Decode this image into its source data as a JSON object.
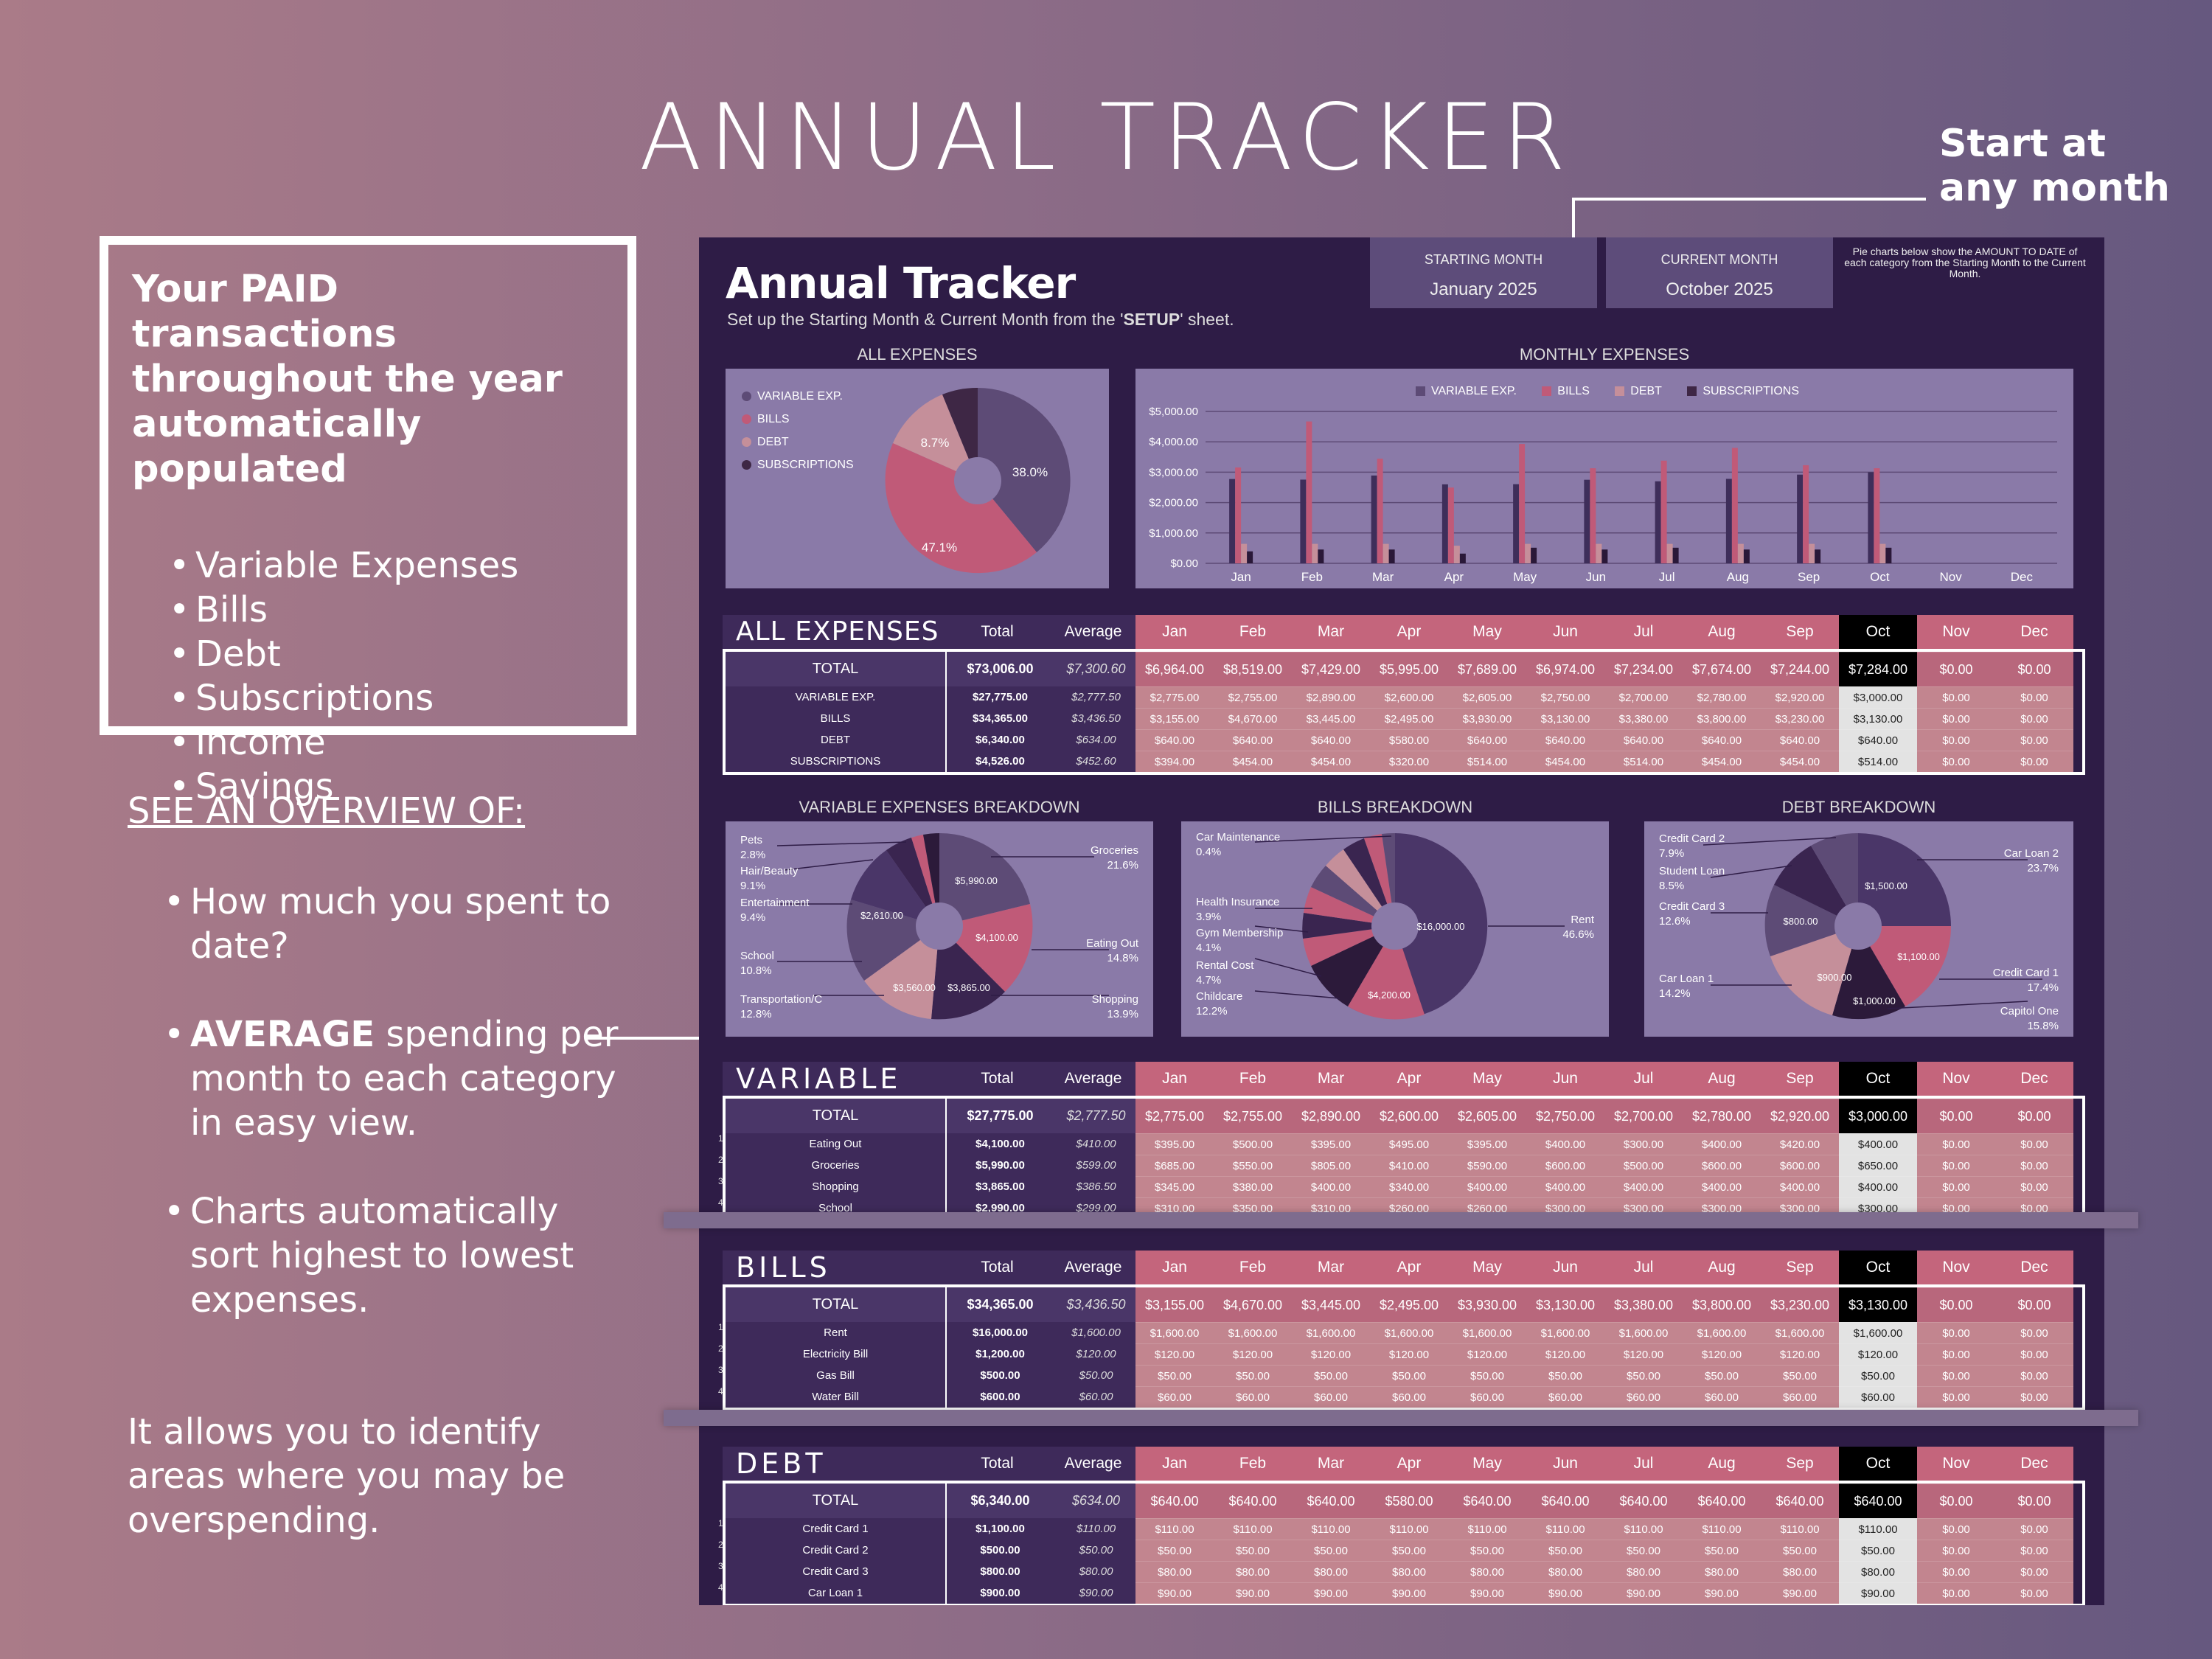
{
  "hero_title": "ANNUAL TRACKER",
  "callout": {
    "line1": "Start at",
    "line2": "any month"
  },
  "intro_box": {
    "heading": "Your PAID transactions throughout the year automatically populated",
    "items": [
      "Variable Expenses",
      "Bills",
      "Debt",
      "Subscriptions",
      "Income",
      "Savings"
    ]
  },
  "overview": {
    "heading": "SEE AN OVERVIEW OF:",
    "item1": "How much you spent to date?",
    "item2_bold": "AVERAGE",
    "item2_rest": " spending per month to each category in easy view.",
    "item3": "Charts automatically sort highest to lowest expenses."
  },
  "footer_text": "It allows you to identify areas where you may be overspending.",
  "app": {
    "title": "Annual Tracker",
    "subtitle_pre": "Set up the Starting Month & Current Month from the '",
    "subtitle_bold": "SETUP",
    "subtitle_post": "' sheet.",
    "starting_month_label": "STARTING MONTH",
    "starting_month_value": "January  2025",
    "current_month_label": "CURRENT MONTH",
    "current_month_value": "October  2025",
    "pie_note": "Pie charts below show the AMOUNT TO DATE of each category from the Starting Month to the Current Month."
  },
  "colors": {
    "variable": "#5d4b76",
    "bills": "#c05a78",
    "debt": "#c58f9a",
    "subscriptions": "#3e2745",
    "month_header": "#c4657c",
    "current_month": "#000000",
    "page_bg": "#2e1c46"
  },
  "months": [
    "Jan",
    "Feb",
    "Mar",
    "Apr",
    "May",
    "Jun",
    "Jul",
    "Aug",
    "Sep",
    "Oct",
    "Nov",
    "Dec"
  ],
  "current_month_index": 9,
  "col_total": "Total",
  "col_average": "Average",
  "all_expenses_pie": {
    "title": "ALL EXPENSES",
    "legend": [
      "VARIABLE EXP.",
      "BILLS",
      "DEBT",
      "SUBSCRIPTIONS"
    ],
    "labels": [
      "38.0%",
      "47.1%",
      "8.7%"
    ]
  },
  "chart_data": {
    "type": "bar",
    "title": "MONTHLY EXPENSES",
    "categories": [
      "Jan",
      "Feb",
      "Mar",
      "Apr",
      "May",
      "Jun",
      "Jul",
      "Aug",
      "Sep",
      "Oct",
      "Nov",
      "Dec"
    ],
    "series": [
      {
        "name": "VARIABLE EXP.",
        "values": [
          2775,
          2755,
          2890,
          2600,
          2605,
          2750,
          2700,
          2780,
          2920,
          3000,
          0,
          0
        ]
      },
      {
        "name": "BILLS",
        "values": [
          3155,
          4670,
          3445,
          2495,
          3930,
          3130,
          3380,
          3800,
          3230,
          3130,
          0,
          0
        ]
      },
      {
        "name": "DEBT",
        "values": [
          640,
          640,
          640,
          580,
          640,
          640,
          640,
          640,
          640,
          640,
          0,
          0
        ]
      },
      {
        "name": "SUBSCRIPTIONS",
        "values": [
          394,
          454,
          454,
          320,
          514,
          454,
          514,
          454,
          454,
          514,
          0,
          0
        ]
      }
    ],
    "yticks": [
      "$0.00",
      "$1,000.00",
      "$2,000.00",
      "$3,000.00",
      "$4,000.00",
      "$5,000.00"
    ],
    "ylim": [
      0,
      5000
    ],
    "legend_position": "top"
  },
  "all_table": {
    "title": "ALL EXPENSES",
    "total": {
      "label": "TOTAL",
      "total": "$73,006.00",
      "average": "$7,300.60",
      "months": [
        "$6,964.00",
        "$8,519.00",
        "$7,429.00",
        "$5,995.00",
        "$7,689.00",
        "$6,974.00",
        "$7,234.00",
        "$7,674.00",
        "$7,244.00",
        "$7,284.00",
        "$0.00",
        "$0.00"
      ]
    },
    "rows": [
      {
        "label": "VARIABLE EXP.",
        "total": "$27,775.00",
        "average": "$2,777.50",
        "months": [
          "$2,775.00",
          "$2,755.00",
          "$2,890.00",
          "$2,600.00",
          "$2,605.00",
          "$2,750.00",
          "$2,700.00",
          "$2,780.00",
          "$2,920.00",
          "$3,000.00",
          "$0.00",
          "$0.00"
        ]
      },
      {
        "label": "BILLS",
        "total": "$34,365.00",
        "average": "$3,436.50",
        "months": [
          "$3,155.00",
          "$4,670.00",
          "$3,445.00",
          "$2,495.00",
          "$3,930.00",
          "$3,130.00",
          "$3,380.00",
          "$3,800.00",
          "$3,230.00",
          "$3,130.00",
          "$0.00",
          "$0.00"
        ]
      },
      {
        "label": "DEBT",
        "total": "$6,340.00",
        "average": "$634.00",
        "months": [
          "$640.00",
          "$640.00",
          "$640.00",
          "$580.00",
          "$640.00",
          "$640.00",
          "$640.00",
          "$640.00",
          "$640.00",
          "$640.00",
          "$0.00",
          "$0.00"
        ]
      },
      {
        "label": "SUBSCRIPTIONS",
        "total": "$4,526.00",
        "average": "$452.60",
        "months": [
          "$394.00",
          "$454.00",
          "$454.00",
          "$320.00",
          "$514.00",
          "$454.00",
          "$514.00",
          "$454.00",
          "$454.00",
          "$514.00",
          "$0.00",
          "$0.00"
        ]
      }
    ]
  },
  "variable_pie": {
    "title": "VARIABLE EXPENSES BREAKDOWN",
    "callouts": [
      {
        "name": "Pets",
        "pct": "2.8%"
      },
      {
        "name": "Hair/Beauty",
        "pct": "9.1%"
      },
      {
        "name": "Entertainment",
        "pct": "9.4%"
      },
      {
        "name": "School",
        "pct": "10.8%"
      },
      {
        "name": "Transportation/C",
        "pct": "12.8%"
      },
      {
        "name": "Groceries",
        "pct": "21.6%"
      },
      {
        "name": "Eating Out",
        "pct": "14.8%"
      },
      {
        "name": "Shopping",
        "pct": "13.9%"
      }
    ],
    "inner": [
      "$5,990.00",
      "$4,100.00",
      "$3,865.00",
      "$3,560.00",
      "$2,610.00"
    ]
  },
  "bills_pie": {
    "title": "BILLS BREAKDOWN",
    "callouts": [
      {
        "name": "Car Maintenance",
        "pct": "0.4%"
      },
      {
        "name": "Health Insurance",
        "pct": "3.9%"
      },
      {
        "name": "Gym Membership",
        "pct": "4.1%"
      },
      {
        "name": "Rental Cost",
        "pct": "4.7%"
      },
      {
        "name": "Childcare",
        "pct": "12.2%"
      },
      {
        "name": "Rent",
        "pct": "46.6%"
      }
    ],
    "inner": [
      "$16,000.00",
      "$4,200.00"
    ]
  },
  "debt_pie": {
    "title": "DEBT BREAKDOWN",
    "callouts": [
      {
        "name": "Credit Card 2",
        "pct": "7.9%"
      },
      {
        "name": "Student Loan",
        "pct": "8.5%"
      },
      {
        "name": "Credit Card 3",
        "pct": "12.6%"
      },
      {
        "name": "Car Loan 1",
        "pct": "14.2%"
      },
      {
        "name": "Car Loan 2",
        "pct": "23.7%"
      },
      {
        "name": "Credit Card 1",
        "pct": "17.4%"
      },
      {
        "name": "Capitol One",
        "pct": "15.8%"
      }
    ],
    "inner": [
      "$1,500.00",
      "$800.00",
      "$1,100.00",
      "$900.00",
      "$1,000.00"
    ]
  },
  "variable_table": {
    "title": "VARIABLE",
    "total": {
      "label": "TOTAL",
      "total": "$27,775.00",
      "average": "$2,777.50",
      "months": [
        "$2,775.00",
        "$2,755.00",
        "$2,890.00",
        "$2,600.00",
        "$2,605.00",
        "$2,750.00",
        "$2,700.00",
        "$2,780.00",
        "$2,920.00",
        "$3,000.00",
        "$0.00",
        "$0.00"
      ]
    },
    "rows": [
      {
        "num": "1",
        "label": "Eating Out",
        "total": "$4,100.00",
        "average": "$410.00",
        "months": [
          "$395.00",
          "$500.00",
          "$395.00",
          "$495.00",
          "$395.00",
          "$400.00",
          "$300.00",
          "$400.00",
          "$420.00",
          "$400.00",
          "$0.00",
          "$0.00"
        ]
      },
      {
        "num": "2",
        "label": "Groceries",
        "total": "$5,990.00",
        "average": "$599.00",
        "months": [
          "$685.00",
          "$550.00",
          "$805.00",
          "$410.00",
          "$590.00",
          "$600.00",
          "$500.00",
          "$600.00",
          "$600.00",
          "$650.00",
          "$0.00",
          "$0.00"
        ]
      },
      {
        "num": "3",
        "label": "Shopping",
        "total": "$3,865.00",
        "average": "$386.50",
        "months": [
          "$345.00",
          "$380.00",
          "$400.00",
          "$340.00",
          "$400.00",
          "$400.00",
          "$400.00",
          "$400.00",
          "$400.00",
          "$400.00",
          "$0.00",
          "$0.00"
        ]
      },
      {
        "num": "4",
        "label": "School",
        "total": "$2,990.00",
        "average": "$299.00",
        "months": [
          "$310.00",
          "$350.00",
          "$310.00",
          "$260.00",
          "$260.00",
          "$300.00",
          "$300.00",
          "$300.00",
          "$300.00",
          "$300.00",
          "$0.00",
          "$0.00"
        ]
      }
    ]
  },
  "bills_table": {
    "title": "BILLS",
    "total": {
      "label": "TOTAL",
      "total": "$34,365.00",
      "average": "$3,436.50",
      "months": [
        "$3,155.00",
        "$4,670.00",
        "$3,445.00",
        "$2,495.00",
        "$3,930.00",
        "$3,130.00",
        "$3,380.00",
        "$3,800.00",
        "$3,230.00",
        "$3,130.00",
        "$0.00",
        "$0.00"
      ]
    },
    "rows": [
      {
        "num": "1",
        "label": "Rent",
        "total": "$16,000.00",
        "average": "$1,600.00",
        "months": [
          "$1,600.00",
          "$1,600.00",
          "$1,600.00",
          "$1,600.00",
          "$1,600.00",
          "$1,600.00",
          "$1,600.00",
          "$1,600.00",
          "$1,600.00",
          "$1,600.00",
          "$0.00",
          "$0.00"
        ]
      },
      {
        "num": "2",
        "label": "Electricity Bill",
        "total": "$1,200.00",
        "average": "$120.00",
        "months": [
          "$120.00",
          "$120.00",
          "$120.00",
          "$120.00",
          "$120.00",
          "$120.00",
          "$120.00",
          "$120.00",
          "$120.00",
          "$120.00",
          "$0.00",
          "$0.00"
        ]
      },
      {
        "num": "3",
        "label": "Gas Bill",
        "total": "$500.00",
        "average": "$50.00",
        "months": [
          "$50.00",
          "$50.00",
          "$50.00",
          "$50.00",
          "$50.00",
          "$50.00",
          "$50.00",
          "$50.00",
          "$50.00",
          "$50.00",
          "$0.00",
          "$0.00"
        ]
      },
      {
        "num": "4",
        "label": "Water Bill",
        "total": "$600.00",
        "average": "$60.00",
        "months": [
          "$60.00",
          "$60.00",
          "$60.00",
          "$60.00",
          "$60.00",
          "$60.00",
          "$60.00",
          "$60.00",
          "$60.00",
          "$60.00",
          "$0.00",
          "$0.00"
        ]
      }
    ]
  },
  "debt_table": {
    "title": "DEBT",
    "total": {
      "label": "TOTAL",
      "total": "$6,340.00",
      "average": "$634.00",
      "months": [
        "$640.00",
        "$640.00",
        "$640.00",
        "$580.00",
        "$640.00",
        "$640.00",
        "$640.00",
        "$640.00",
        "$640.00",
        "$640.00",
        "$0.00",
        "$0.00"
      ]
    },
    "rows": [
      {
        "num": "1",
        "label": "Credit Card 1",
        "total": "$1,100.00",
        "average": "$110.00",
        "months": [
          "$110.00",
          "$110.00",
          "$110.00",
          "$110.00",
          "$110.00",
          "$110.00",
          "$110.00",
          "$110.00",
          "$110.00",
          "$110.00",
          "$0.00",
          "$0.00"
        ]
      },
      {
        "num": "2",
        "label": "Credit Card 2",
        "total": "$500.00",
        "average": "$50.00",
        "months": [
          "$50.00",
          "$50.00",
          "$50.00",
          "$50.00",
          "$50.00",
          "$50.00",
          "$50.00",
          "$50.00",
          "$50.00",
          "$50.00",
          "$0.00",
          "$0.00"
        ]
      },
      {
        "num": "3",
        "label": "Credit Card 3",
        "total": "$800.00",
        "average": "$80.00",
        "months": [
          "$80.00",
          "$80.00",
          "$80.00",
          "$80.00",
          "$80.00",
          "$80.00",
          "$80.00",
          "$80.00",
          "$80.00",
          "$80.00",
          "$0.00",
          "$0.00"
        ]
      },
      {
        "num": "4",
        "label": "Car Loan 1",
        "total": "$900.00",
        "average": "$90.00",
        "months": [
          "$90.00",
          "$90.00",
          "$90.00",
          "$90.00",
          "$90.00",
          "$90.00",
          "$90.00",
          "$90.00",
          "$90.00",
          "$90.00",
          "$0.00",
          "$0.00"
        ]
      }
    ]
  }
}
